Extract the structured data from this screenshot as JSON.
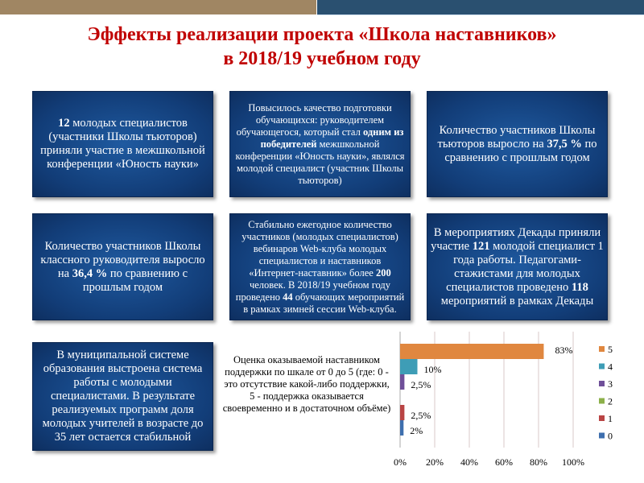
{
  "title": {
    "line1": "Эффекты реализации проекта «Школа наставников»",
    "line2": "в 2018/19 учебном году"
  },
  "boxes": [
    {
      "html": "<b>12</b> молодых специалистов (участники Школы тьюторов) приняли участие в межшкольной конференции «Юность науки»"
    },
    {
      "html": "Повысилось качество подготовки обучающихся: руководителем обучающегося, который стал <b>одним из победителей</b> межшкольной конференции «Юность науки», являлся молодой специалист (участник Школы тьюторов)"
    },
    {
      "html": "Количество участников Школы тьюторов выросло на <b>37,5 %</b> по сравнению с прошлым годом"
    },
    {
      "html": "Количество участников Школы классного руководителя выросло на <b>36,4 %</b> по сравнению с прошлым годом"
    },
    {
      "html": "Стабильно ежегодное количество участников (молодых специалистов) вебинаров Web-клуба молодых специалистов и наставников «Интернет-наставник» более <b>200</b> человек. В 2018/19 учебном году проведено <b>44</b> обучающих мероприятий в рамках зимней сессии Web-клуба."
    },
    {
      "html": "В мероприятиях Декады при­няли участие <b>121</b> молодой спе­циалист 1 года работы. Педагогами-стажистами для молодых специалистов проведено <b>118</b> мероприятий в рамках Декады"
    },
    {
      "html": "В муниципальной системе образования выстроена система работы с молодыми специалистами. В результате реализуемых программ доля молодых учителей в возрасте до 35 лет остается стабильной"
    }
  ],
  "chart_label": "Оценка оказываемой наставником поддержки по шкале от 0 до 5 (где: 0 - это отсутствие какой-либо поддержки, 5 - поддержка оказывается своевременно и в достаточном объёме)",
  "chart_data": {
    "type": "bar",
    "orientation": "horizontal",
    "series": [
      {
        "name": "5",
        "value": 83,
        "label": "83%",
        "color": "#e0873f"
      },
      {
        "name": "4",
        "value": 10,
        "label": "10%",
        "color": "#3e9db6"
      },
      {
        "name": "3",
        "value": 2.5,
        "label": "2,5%",
        "color": "#6f4f99"
      },
      {
        "name": "2",
        "value": 0,
        "label": "",
        "color": "#8cb04a"
      },
      {
        "name": "1",
        "value": 2.5,
        "label": "2,5%",
        "color": "#b94444"
      },
      {
        "name": "0",
        "value": 2,
        "label": "2%",
        "color": "#3e6fae"
      }
    ],
    "xlim": [
      0,
      100
    ],
    "xticks": [
      "0%",
      "20%",
      "40%",
      "60%",
      "80%",
      "100%"
    ],
    "grid": true,
    "legend": "right"
  }
}
